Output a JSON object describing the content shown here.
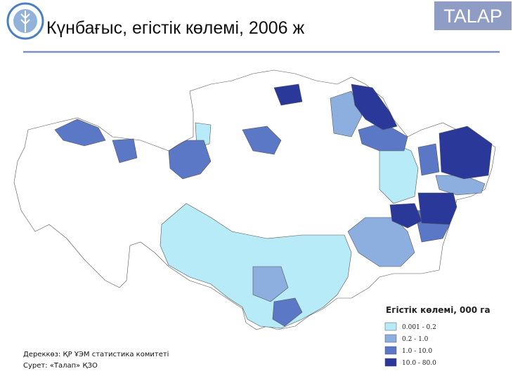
{
  "header": {
    "title": "Күнбағыс, егістік көлемі, 2006 ж",
    "brand": "TALAP"
  },
  "legend": {
    "title": "Егістік көлемі, 000 га",
    "items": [
      {
        "label": "0.001 - 0.2",
        "color": "#b6ebf7"
      },
      {
        "label": "0.2 - 1.0",
        "color": "#8cafdf"
      },
      {
        "label": "1.0 - 10.0",
        "color": "#5b78c6"
      },
      {
        "label": "10.0 - 80.0",
        "color": "#2a3899"
      }
    ]
  },
  "footer": {
    "source": "Дереккөз: ҚР ҰЭМ статистика комитеті",
    "credit": "Сурет: «Талап» ҚЗО"
  }
}
